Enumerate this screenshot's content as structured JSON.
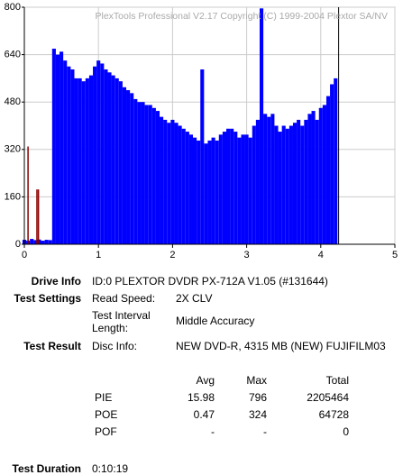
{
  "chart_data": {
    "type": "bar",
    "title": "PlexTools Professional V2.17 Copyright (C) 1999-2004 Plextor SA/NV",
    "xlim": [
      0,
      5
    ],
    "xticks": [
      0,
      1,
      2,
      3,
      4,
      5
    ],
    "ylim": [
      0,
      800
    ],
    "yticks": [
      0,
      160,
      320,
      480,
      640,
      800
    ],
    "grid": true,
    "series": [
      {
        "color": "#0000ff",
        "x": [
          0,
          0.05,
          0.1,
          0.15,
          0.2,
          0.25,
          0.3,
          0.35,
          0.4,
          0.45,
          0.5,
          0.55,
          0.6,
          0.65,
          0.7,
          0.75,
          0.8,
          0.85,
          0.9,
          0.95,
          1.0,
          1.05,
          1.1,
          1.15,
          1.2,
          1.25,
          1.3,
          1.35,
          1.4,
          1.45,
          1.5,
          1.55,
          1.6,
          1.65,
          1.7,
          1.75,
          1.8,
          1.85,
          1.9,
          1.95,
          2.0,
          2.05,
          2.1,
          2.15,
          2.2,
          2.25,
          2.3,
          2.35,
          2.4,
          2.45,
          2.5,
          2.55,
          2.6,
          2.65,
          2.7,
          2.75,
          2.8,
          2.85,
          2.9,
          2.95,
          3.0,
          3.05,
          3.1,
          3.15,
          3.2,
          3.25,
          3.3,
          3.35,
          3.4,
          3.45,
          3.5,
          3.55,
          3.6,
          3.65,
          3.7,
          3.75,
          3.8,
          3.85,
          3.9,
          3.95,
          4.0,
          4.05,
          4.1,
          4.15,
          4.2
        ],
        "values": [
          15,
          12,
          18,
          14,
          16,
          12,
          15,
          14,
          660,
          640,
          650,
          620,
          600,
          590,
          560,
          560,
          550,
          560,
          570,
          600,
          620,
          610,
          590,
          580,
          570,
          560,
          550,
          530,
          520,
          510,
          490,
          480,
          480,
          470,
          470,
          460,
          450,
          430,
          420,
          410,
          420,
          410,
          400,
          390,
          380,
          370,
          360,
          350,
          590,
          340,
          350,
          360,
          350,
          370,
          380,
          390,
          390,
          380,
          360,
          370,
          370,
          360,
          400,
          420,
          796,
          440,
          430,
          440,
          400,
          380,
          400,
          390,
          400,
          410,
          420,
          400,
          420,
          440,
          450,
          420,
          460,
          470,
          500,
          540,
          560
        ]
      },
      {
        "color": "#8b0000",
        "x": [
          0.05,
          0.17,
          0.19
        ],
        "values": [
          330,
          185,
          185
        ]
      }
    ]
  },
  "report": {
    "drive_info": {
      "label": "Drive Info",
      "value": "ID:0 PLEXTOR DVDR PX-712A V1.05 (#131644)"
    },
    "test_settings": {
      "label": "Test Settings",
      "rows": [
        [
          "Read Speed:",
          "2X CLV"
        ],
        [
          "Test Interval Length:",
          "Middle Accuracy"
        ]
      ]
    },
    "test_result": {
      "label": "Test Result",
      "disc_label": "Disc Info:",
      "disc_info": "NEW DVD-R, 4315 MB (NEW) FUJIFILM03"
    },
    "stats": {
      "columns": [
        "Avg",
        "Max",
        "Total"
      ],
      "rows": [
        {
          "name": "PIE",
          "values": [
            15.98,
            796,
            2205464
          ]
        },
        {
          "name": "POE",
          "values": [
            0.47,
            324,
            64728
          ]
        },
        {
          "name": "POF",
          "values": [
            "-",
            "-",
            0
          ]
        }
      ]
    },
    "test_duration": {
      "label": "Test Duration",
      "value": "0:10:19"
    }
  }
}
